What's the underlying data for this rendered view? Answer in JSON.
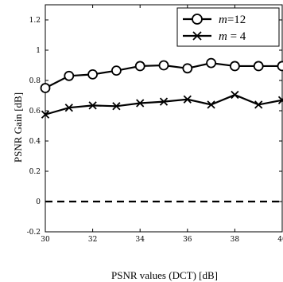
{
  "chart_data": {
    "type": "line",
    "xlabel": "PSNR values (DCT) [dB]",
    "ylabel": "PSNR Gain [dB]",
    "xlim": [
      30,
      40
    ],
    "ylim": [
      -0.2,
      1.3
    ],
    "xticks": [
      "30",
      "32",
      "34",
      "36",
      "38",
      "40"
    ],
    "yticks": [
      "-0.2",
      "0",
      "0.2",
      "0.4",
      "0.6",
      "0.8",
      "1",
      "1.2"
    ],
    "grid": false,
    "legend_position": "top-right",
    "x": [
      30,
      31,
      32,
      33,
      34,
      35,
      36,
      37,
      38,
      39,
      40
    ],
    "series": [
      {
        "name": "m =12",
        "legend_var": "m",
        "legend_val": "=12",
        "marker": "circle",
        "values": [
          0.75,
          0.83,
          0.84,
          0.865,
          0.895,
          0.9,
          0.88,
          0.915,
          0.895,
          0.895,
          0.895
        ]
      },
      {
        "name": "m = 4",
        "legend_var": "m",
        "legend_val": " = 4",
        "marker": "x",
        "values": [
          0.575,
          0.62,
          0.635,
          0.63,
          0.65,
          0.66,
          0.675,
          0.64,
          0.705,
          0.64,
          0.67
        ]
      }
    ],
    "reference_line": {
      "y": 0,
      "style": "dashed"
    }
  }
}
